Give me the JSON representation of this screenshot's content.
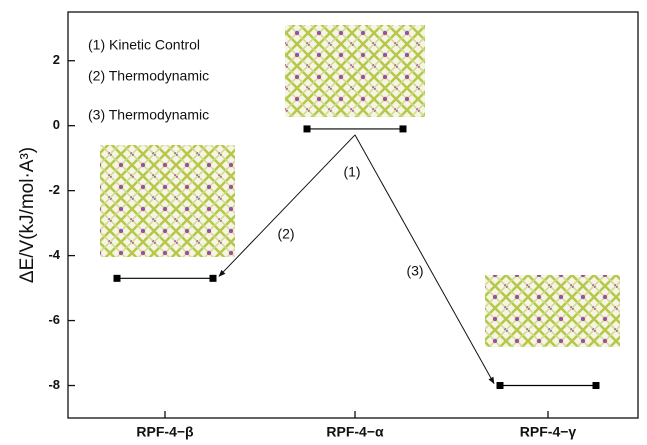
{
  "chart_data": {
    "type": "energy-levels",
    "y_label": "ΔE/V(kJ/mol·A³)",
    "categories": [
      "RPF-4−β",
      "RPF-4−α",
      "RPF-4−γ"
    ],
    "values": [
      -4.7,
      -0.1,
      -8.0
    ],
    "color": "#000000",
    "ylim": [
      -9,
      3.5
    ],
    "yticks": [
      -8,
      -6,
      -4,
      -2,
      0,
      2
    ],
    "notes": [
      "(1) Kinetic Control",
      "(2) Thermodynamic",
      "(3) Thermodynamic"
    ],
    "annotations": [
      "(1)",
      "(2)",
      "(3)"
    ]
  }
}
